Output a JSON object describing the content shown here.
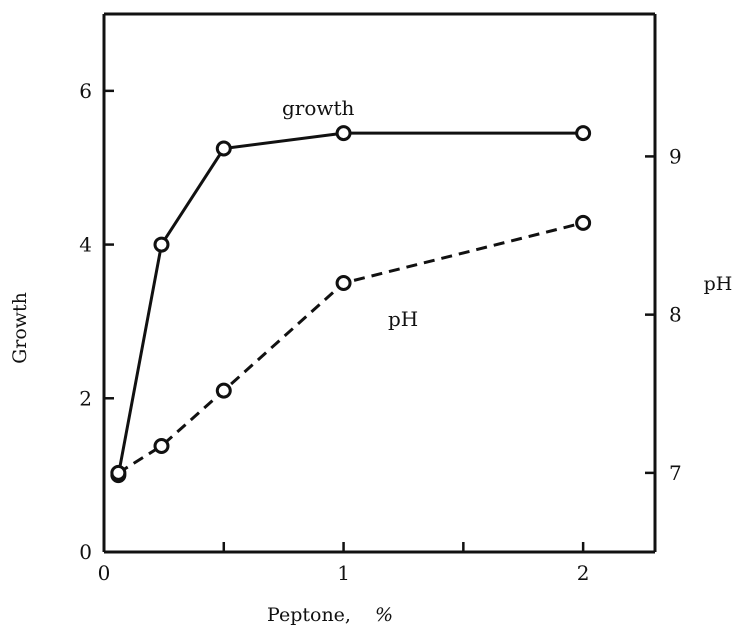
{
  "chart_data": {
    "type": "line",
    "xlabel": "Peptone,",
    "xlabel_unit": "%",
    "ylabel": "Growth",
    "y2label": "pH",
    "xlim": [
      0,
      2.3
    ],
    "ylim": [
      0,
      7
    ],
    "y2lim": [
      6.5,
      9.9
    ],
    "x_ticks": [
      0,
      0.5,
      1,
      1.5,
      2
    ],
    "x_tick_labels": [
      "0",
      "",
      "1",
      "",
      "2"
    ],
    "y_ticks": [
      0,
      2,
      4,
      6
    ],
    "y_tick_labels": [
      "0",
      "2",
      "4",
      "6"
    ],
    "y2_ticks": [
      7,
      8,
      9
    ],
    "y2_tick_labels": [
      "7",
      "8",
      "9"
    ],
    "series": [
      {
        "name": "growth",
        "axis": "left",
        "style": "solid",
        "x": [
          0.06,
          0.24,
          0.5,
          1.0,
          2.0
        ],
        "y": [
          1.0,
          4.0,
          5.25,
          5.45,
          5.45
        ]
      },
      {
        "name": "pH",
        "axis": "right",
        "style": "dashed",
        "x": [
          0.06,
          0.24,
          0.5,
          1.0,
          2.0
        ],
        "y": [
          7.0,
          7.17,
          7.52,
          8.2,
          8.58
        ]
      }
    ],
    "grid": false,
    "legend": "inline labels"
  }
}
